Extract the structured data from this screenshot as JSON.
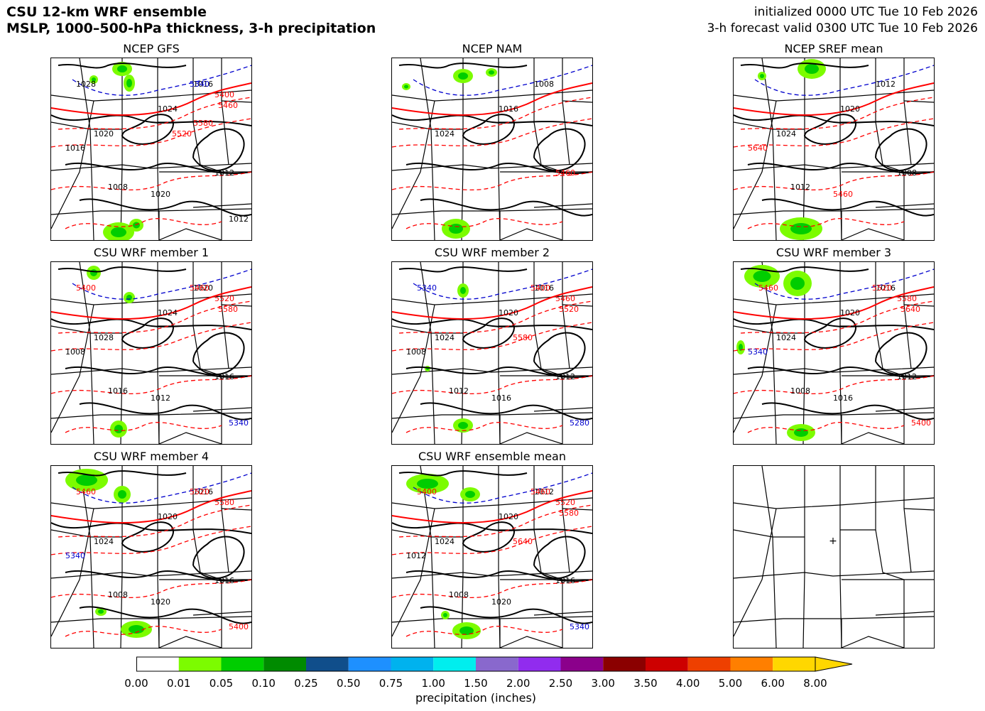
{
  "header": {
    "title_line1": "CSU 12-km WRF ensemble",
    "title_line2": "MSLP, 1000–500-hPa thickness, 3-h precipitation",
    "init_line": "initialized 0000 UTC Tue 10 Feb 2026",
    "valid_line": "3-h forecast valid 0300 UTC Tue 10 Feb 2026"
  },
  "panels": [
    {
      "title": "NCEP GFS",
      "labels": [
        "1020",
        "1024",
        "1016",
        "1012",
        "1008",
        "1020",
        "1016",
        "1012",
        "1028",
        "5340",
        "5400",
        "5460",
        "5520",
        "5580"
      ]
    },
    {
      "title": "NCEP NAM",
      "labels": [
        "1024",
        "1016",
        "1008",
        "5460"
      ]
    },
    {
      "title": "NCEP SREF mean",
      "labels": [
        "1024",
        "1020",
        "1012",
        "1008",
        "1012",
        "5460",
        "5640"
      ]
    },
    {
      "title": "CSU WRF member 1",
      "labels": [
        "1028",
        "1024",
        "1020",
        "1016",
        "1016",
        "1012",
        "1008",
        "5340",
        "5400",
        "5460",
        "5520",
        "5580"
      ]
    },
    {
      "title": "CSU WRF member 2",
      "labels": [
        "1024",
        "1020",
        "1016",
        "1012",
        "1012",
        "1016",
        "1008",
        "5280",
        "5340",
        "5400",
        "5460",
        "5520",
        "5580"
      ]
    },
    {
      "title": "CSU WRF member 3",
      "labels": [
        "1024",
        "1020",
        "1016",
        "1012",
        "1008",
        "1016",
        "5340",
        "5400",
        "5460",
        "5520",
        "5580",
        "5640"
      ]
    },
    {
      "title": "CSU WRF member 4",
      "labels": [
        "1024",
        "1020",
        "1016",
        "1016",
        "1008",
        "1020",
        "5340",
        "5400",
        "5460",
        "5520",
        "5580"
      ]
    },
    {
      "title": "CSU WRF ensemble mean",
      "labels": [
        "1024",
        "1020",
        "1012",
        "1016",
        "1008",
        "1020",
        "1012",
        "5340",
        "5400",
        "5460",
        "5520",
        "5580",
        "5640"
      ]
    }
  ],
  "colorbar": {
    "label": "precipitation (inches)",
    "ticks": [
      "0.00",
      "0.01",
      "0.05",
      "0.10",
      "0.25",
      "0.50",
      "0.75",
      "1.00",
      "1.50",
      "2.00",
      "2.50",
      "3.00",
      "3.50",
      "4.00",
      "5.00",
      "6.00",
      "8.00"
    ],
    "colors": [
      "#ffffff",
      "#7cfc00",
      "#00cd00",
      "#008b00",
      "#104e8b",
      "#1e90ff",
      "#00b2ee",
      "#00eeee",
      "#8968cd",
      "#912cee",
      "#8b008b",
      "#8b0000",
      "#cd0000",
      "#ee4000",
      "#ff7f00",
      "#ffd700"
    ]
  }
}
